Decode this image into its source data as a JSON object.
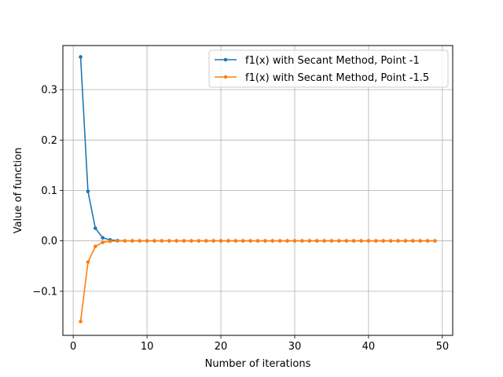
{
  "chart_data": {
    "type": "line",
    "title": "",
    "xlabel": "Number of iterations",
    "ylabel": "Value of function",
    "xlim": [
      -1.4,
      51.4
    ],
    "ylim": [
      -0.1875,
      0.3875
    ],
    "xticks": [
      0,
      10,
      20,
      30,
      40,
      50
    ],
    "xtick_labels": [
      "0",
      "10",
      "20",
      "30",
      "40",
      "50"
    ],
    "yticks": [
      -0.1,
      0.0,
      0.1,
      0.2,
      0.3
    ],
    "ytick_labels": [
      "−0.1",
      "0.0",
      "0.1",
      "0.2",
      "0.3"
    ],
    "grid": true,
    "legend_position": "top-right",
    "series": [
      {
        "name": "f1(x) with Secant Method, Point -1",
        "color": "#1f77b4",
        "x": [
          1,
          2,
          3,
          4,
          5,
          6,
          7,
          8,
          9,
          10,
          11,
          12,
          13,
          14,
          15,
          16,
          17,
          18,
          19,
          20,
          21,
          22,
          23,
          24,
          25,
          26,
          27,
          28,
          29,
          30,
          31,
          32,
          33,
          34,
          35,
          36,
          37,
          38,
          39,
          40,
          41,
          42,
          43,
          44,
          45,
          46,
          47,
          48,
          49
        ],
        "y": [
          0.365,
          0.098,
          0.025,
          0.006,
          0.002,
          0.0005,
          0,
          0,
          0,
          0,
          0,
          0,
          0,
          0,
          0,
          0,
          0,
          0,
          0,
          0,
          0,
          0,
          0,
          0,
          0,
          0,
          0,
          0,
          0,
          0,
          0,
          0,
          0,
          0,
          0,
          0,
          0,
          0,
          0,
          0,
          0,
          0,
          0,
          0,
          0,
          0,
          0,
          0,
          0
        ]
      },
      {
        "name": "f1(x) with Secant Method, Point -1.5",
        "color": "#ff7f0e",
        "x": [
          1,
          2,
          3,
          4,
          5,
          6,
          7,
          8,
          9,
          10,
          11,
          12,
          13,
          14,
          15,
          16,
          17,
          18,
          19,
          20,
          21,
          22,
          23,
          24,
          25,
          26,
          27,
          28,
          29,
          30,
          31,
          32,
          33,
          34,
          35,
          36,
          37,
          38,
          39,
          40,
          41,
          42,
          43,
          44,
          45,
          46,
          47,
          48,
          49
        ],
        "y": [
          -0.16,
          -0.042,
          -0.011,
          -0.003,
          -0.0007,
          -0.0002,
          0,
          0,
          0,
          0,
          0,
          0,
          0,
          0,
          0,
          0,
          0,
          0,
          0,
          0,
          0,
          0,
          0,
          0,
          0,
          0,
          0,
          0,
          0,
          0,
          0,
          0,
          0,
          0,
          0,
          0,
          0,
          0,
          0,
          0,
          0,
          0,
          0,
          0,
          0,
          0,
          0,
          0,
          0
        ]
      }
    ]
  }
}
